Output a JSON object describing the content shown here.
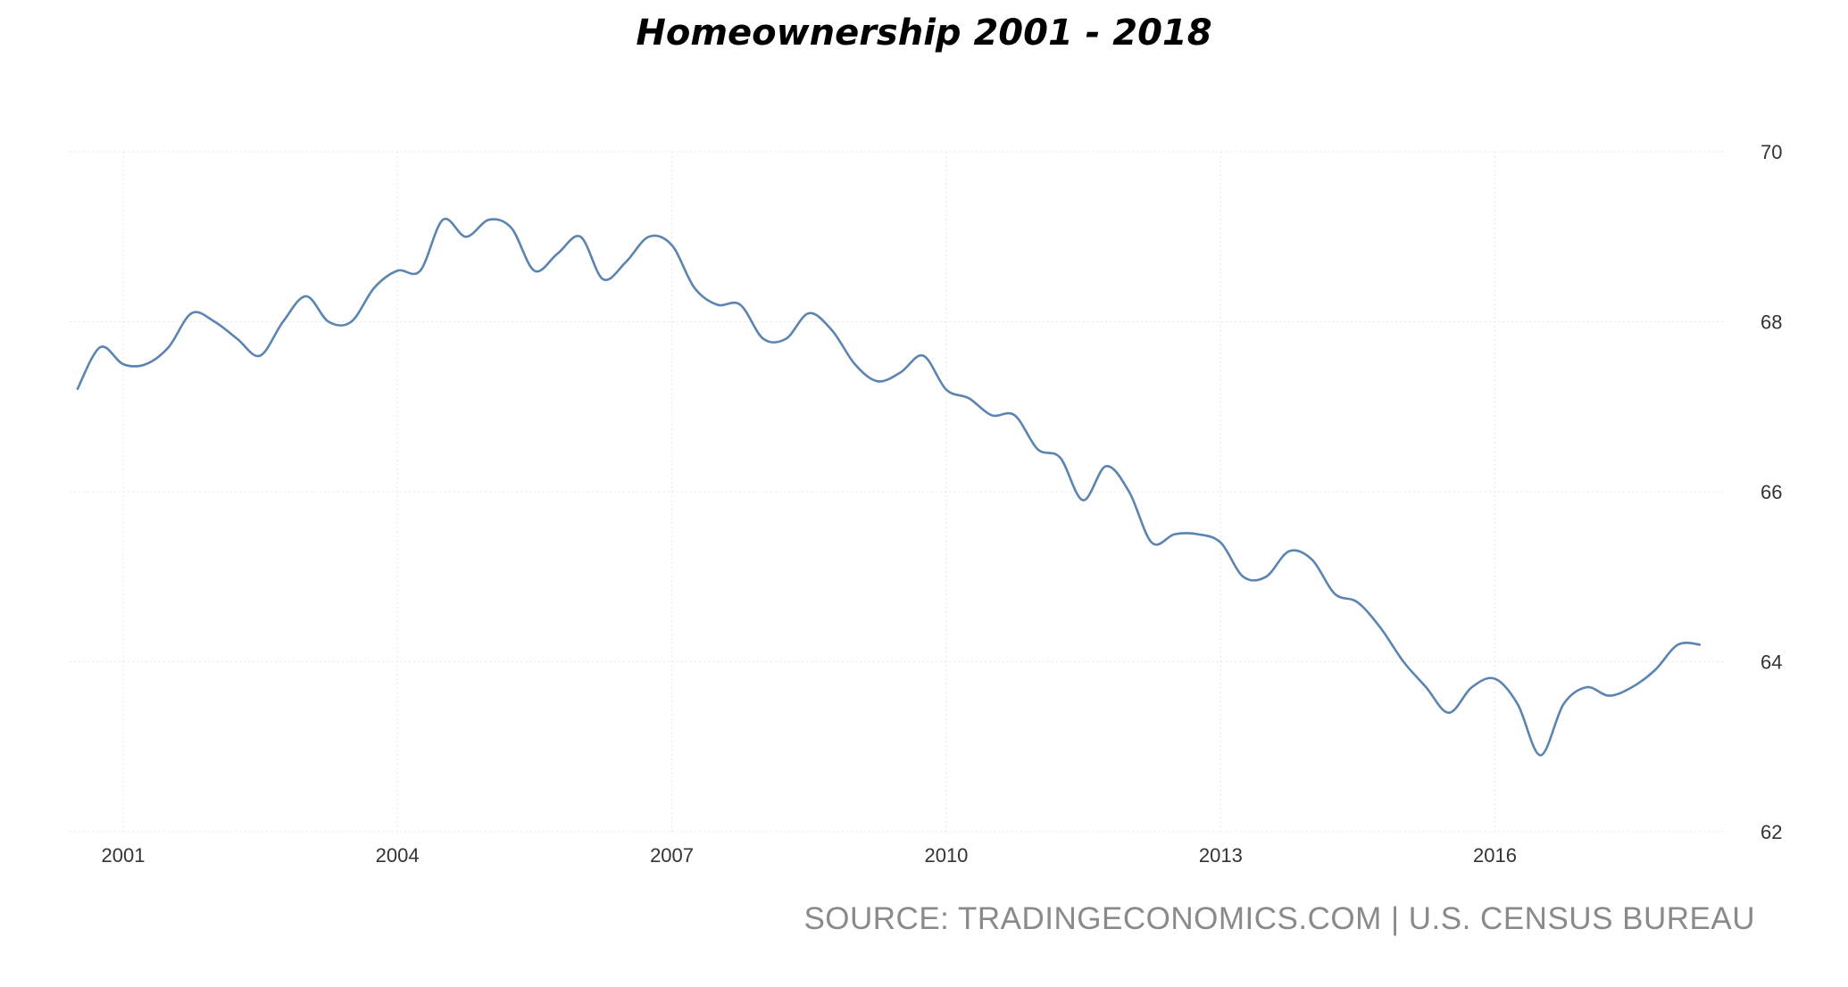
{
  "chart_data": {
    "type": "line",
    "title": "Homeownership 2001 - 2018",
    "xlabel": "",
    "ylabel": "",
    "x_tick_labels": [
      "2001",
      "2004",
      "2007",
      "2010",
      "2013",
      "2016"
    ],
    "y_tick_labels": [
      "70",
      "68",
      "66",
      "64",
      "62"
    ],
    "y_ticks": [
      70,
      68,
      66,
      64,
      62
    ],
    "ylim": [
      62,
      70
    ],
    "xlim": [
      "2000-06-01",
      "2018-06-30"
    ],
    "grid": true,
    "y_axis_position": "right",
    "line_color": "#5b84b1",
    "series": [
      {
        "x": [
          "2000-07-01",
          "2000-10-01",
          "2001-01-01",
          "2001-04-01",
          "2001-07-01",
          "2001-10-01",
          "2002-01-01",
          "2002-04-01",
          "2002-07-01",
          "2002-10-01",
          "2003-01-01",
          "2003-04-01",
          "2003-07-01",
          "2003-10-01",
          "2004-01-01",
          "2004-04-01",
          "2004-07-01",
          "2004-10-01",
          "2005-01-01",
          "2005-04-01",
          "2005-07-01",
          "2005-10-01",
          "2006-01-01",
          "2006-04-01",
          "2006-07-01",
          "2006-10-01",
          "2007-01-01",
          "2007-04-01",
          "2007-07-01",
          "2007-10-01",
          "2008-01-01",
          "2008-04-01",
          "2008-07-01",
          "2008-10-01",
          "2009-01-01",
          "2009-04-01",
          "2009-07-01",
          "2009-10-01",
          "2010-01-01",
          "2010-04-01",
          "2010-07-01",
          "2010-10-01",
          "2011-01-01",
          "2011-04-01",
          "2011-07-01",
          "2011-10-01",
          "2012-01-01",
          "2012-04-01",
          "2012-07-01",
          "2012-10-01",
          "2013-01-01",
          "2013-04-01",
          "2013-07-01",
          "2013-10-01",
          "2014-01-01",
          "2014-04-01",
          "2014-07-01",
          "2014-10-01",
          "2015-01-01",
          "2015-04-01",
          "2015-07-01",
          "2015-10-01",
          "2016-01-01",
          "2016-04-01",
          "2016-07-01",
          "2016-10-01",
          "2017-01-01",
          "2017-04-01",
          "2017-07-01",
          "2017-10-01",
          "2018-01-01",
          "2018-04-01"
        ],
        "values": [
          67.2,
          67.7,
          67.5,
          67.5,
          67.7,
          68.1,
          68.0,
          67.8,
          67.6,
          68.0,
          68.3,
          68.0,
          68.0,
          68.4,
          68.6,
          68.6,
          69.2,
          69.0,
          69.2,
          69.1,
          68.6,
          68.8,
          69.0,
          68.5,
          68.7,
          69.0,
          68.9,
          68.4,
          68.2,
          68.2,
          67.8,
          67.8,
          68.1,
          67.9,
          67.5,
          67.3,
          67.4,
          67.6,
          67.2,
          67.1,
          66.9,
          66.9,
          66.5,
          66.4,
          65.9,
          66.3,
          66.0,
          65.4,
          65.5,
          65.5,
          65.4,
          65.0,
          65.0,
          65.3,
          65.2,
          64.8,
          64.7,
          64.4,
          64.0,
          63.7,
          63.4,
          63.7,
          63.8,
          63.5,
          62.9,
          63.5,
          63.7,
          63.6,
          63.7,
          63.9,
          64.2,
          64.2
        ]
      }
    ]
  },
  "source_note": "SOURCE: TRADINGECONOMICS.COM | U.S. CENSUS BUREAU"
}
